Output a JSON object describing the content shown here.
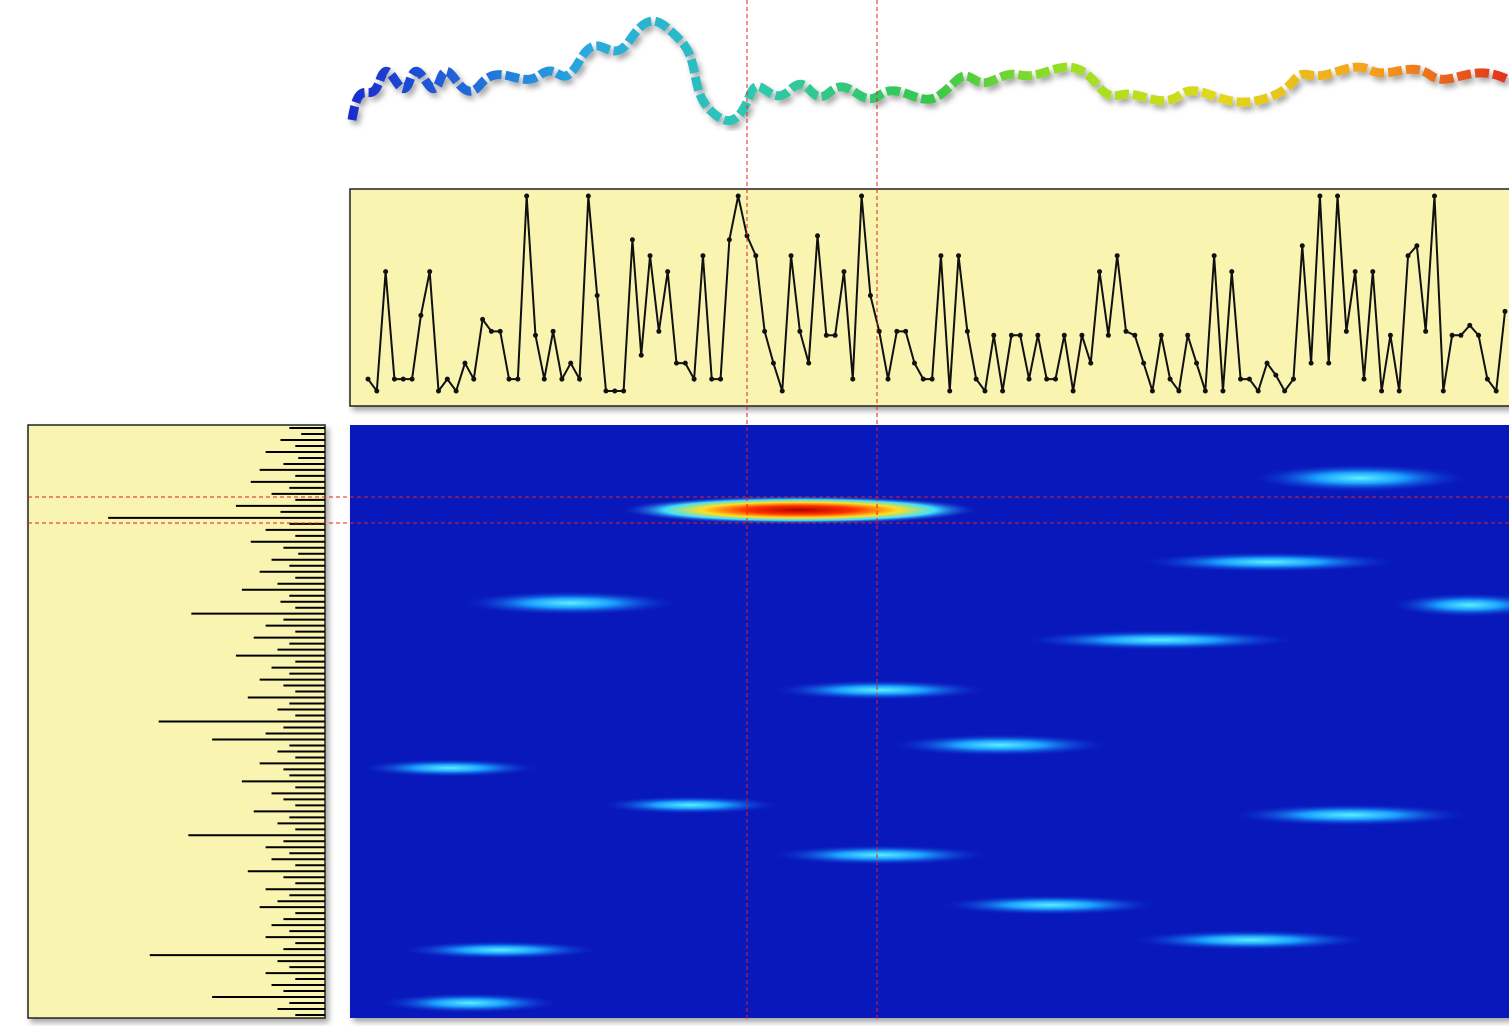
{
  "chart_data": [
    {
      "type": "line",
      "color": "#111111",
      "background": "#f9f5b0",
      "values": [
        0.08,
        0.02,
        0.62,
        0.08,
        0.08,
        0.08,
        0.4,
        0.62,
        0.02,
        0.08,
        0.02,
        0.16,
        0.08,
        0.38,
        0.32,
        0.32,
        0.08,
        0.08,
        1.0,
        0.3,
        0.08,
        0.32,
        0.08,
        0.16,
        0.08,
        1.0,
        0.5,
        0.02,
        0.02,
        0.02,
        0.78,
        0.2,
        0.7,
        0.32,
        0.62,
        0.16,
        0.16,
        0.08,
        0.7,
        0.08,
        0.08,
        0.78,
        1.0,
        0.8,
        0.7,
        0.32,
        0.16,
        0.02,
        0.7,
        0.32,
        0.16,
        0.8,
        0.3,
        0.3,
        0.62,
        0.08,
        1.0,
        0.5,
        0.32,
        0.08,
        0.32,
        0.32,
        0.16,
        0.08,
        0.08,
        0.7,
        0.02,
        0.7,
        0.32,
        0.08,
        0.02,
        0.3,
        0.02,
        0.3,
        0.3,
        0.08,
        0.3,
        0.08,
        0.08,
        0.3,
        0.02,
        0.3,
        0.16,
        0.62,
        0.3,
        0.7,
        0.32,
        0.3,
        0.16,
        0.02,
        0.3,
        0.08,
        0.02,
        0.3,
        0.16,
        0.02,
        0.7,
        0.02,
        0.62,
        0.08,
        0.08,
        0.02,
        0.16,
        0.1,
        0.02,
        0.08,
        0.75,
        0.16,
        1.0,
        0.16,
        1.0,
        0.32,
        0.62,
        0.08,
        0.62,
        0.02,
        0.3,
        0.02,
        0.7,
        0.75,
        0.32,
        1.0,
        0.02,
        0.3,
        0.3,
        0.35,
        0.3,
        0.08,
        0.02,
        0.42
      ]
    },
    {
      "type": "spectrum",
      "color": "#000000",
      "background": "#f9f5b0",
      "values": [
        0.12,
        0.08,
        0.15,
        0.1,
        0.2,
        0.09,
        0.14,
        0.22,
        0.1,
        0.25,
        0.12,
        0.18,
        0.1,
        0.3,
        0.15,
        0.73,
        0.12,
        0.2,
        0.1,
        0.25,
        0.14,
        0.09,
        0.18,
        0.12,
        0.22,
        0.1,
        0.16,
        0.28,
        0.12,
        0.15,
        0.1,
        0.45,
        0.14,
        0.2,
        0.1,
        0.24,
        0.12,
        0.16,
        0.3,
        0.1,
        0.18,
        0.12,
        0.22,
        0.14,
        0.1,
        0.26,
        0.12,
        0.16,
        0.1,
        0.56,
        0.14,
        0.2,
        0.38,
        0.12,
        0.16,
        0.1,
        0.22,
        0.14,
        0.12,
        0.28,
        0.1,
        0.18,
        0.14,
        0.1,
        0.24,
        0.12,
        0.16,
        0.1,
        0.46,
        0.14,
        0.2,
        0.12,
        0.18,
        0.1,
        0.26,
        0.14,
        0.1,
        0.2,
        0.12,
        0.16,
        0.22,
        0.1,
        0.14,
        0.18,
        0.12,
        0.2,
        0.1,
        0.14,
        0.59,
        0.16,
        0.12,
        0.2,
        0.1,
        0.18,
        0.14,
        0.38,
        0.12,
        0.16,
        0.1
      ]
    }
  ]
}
